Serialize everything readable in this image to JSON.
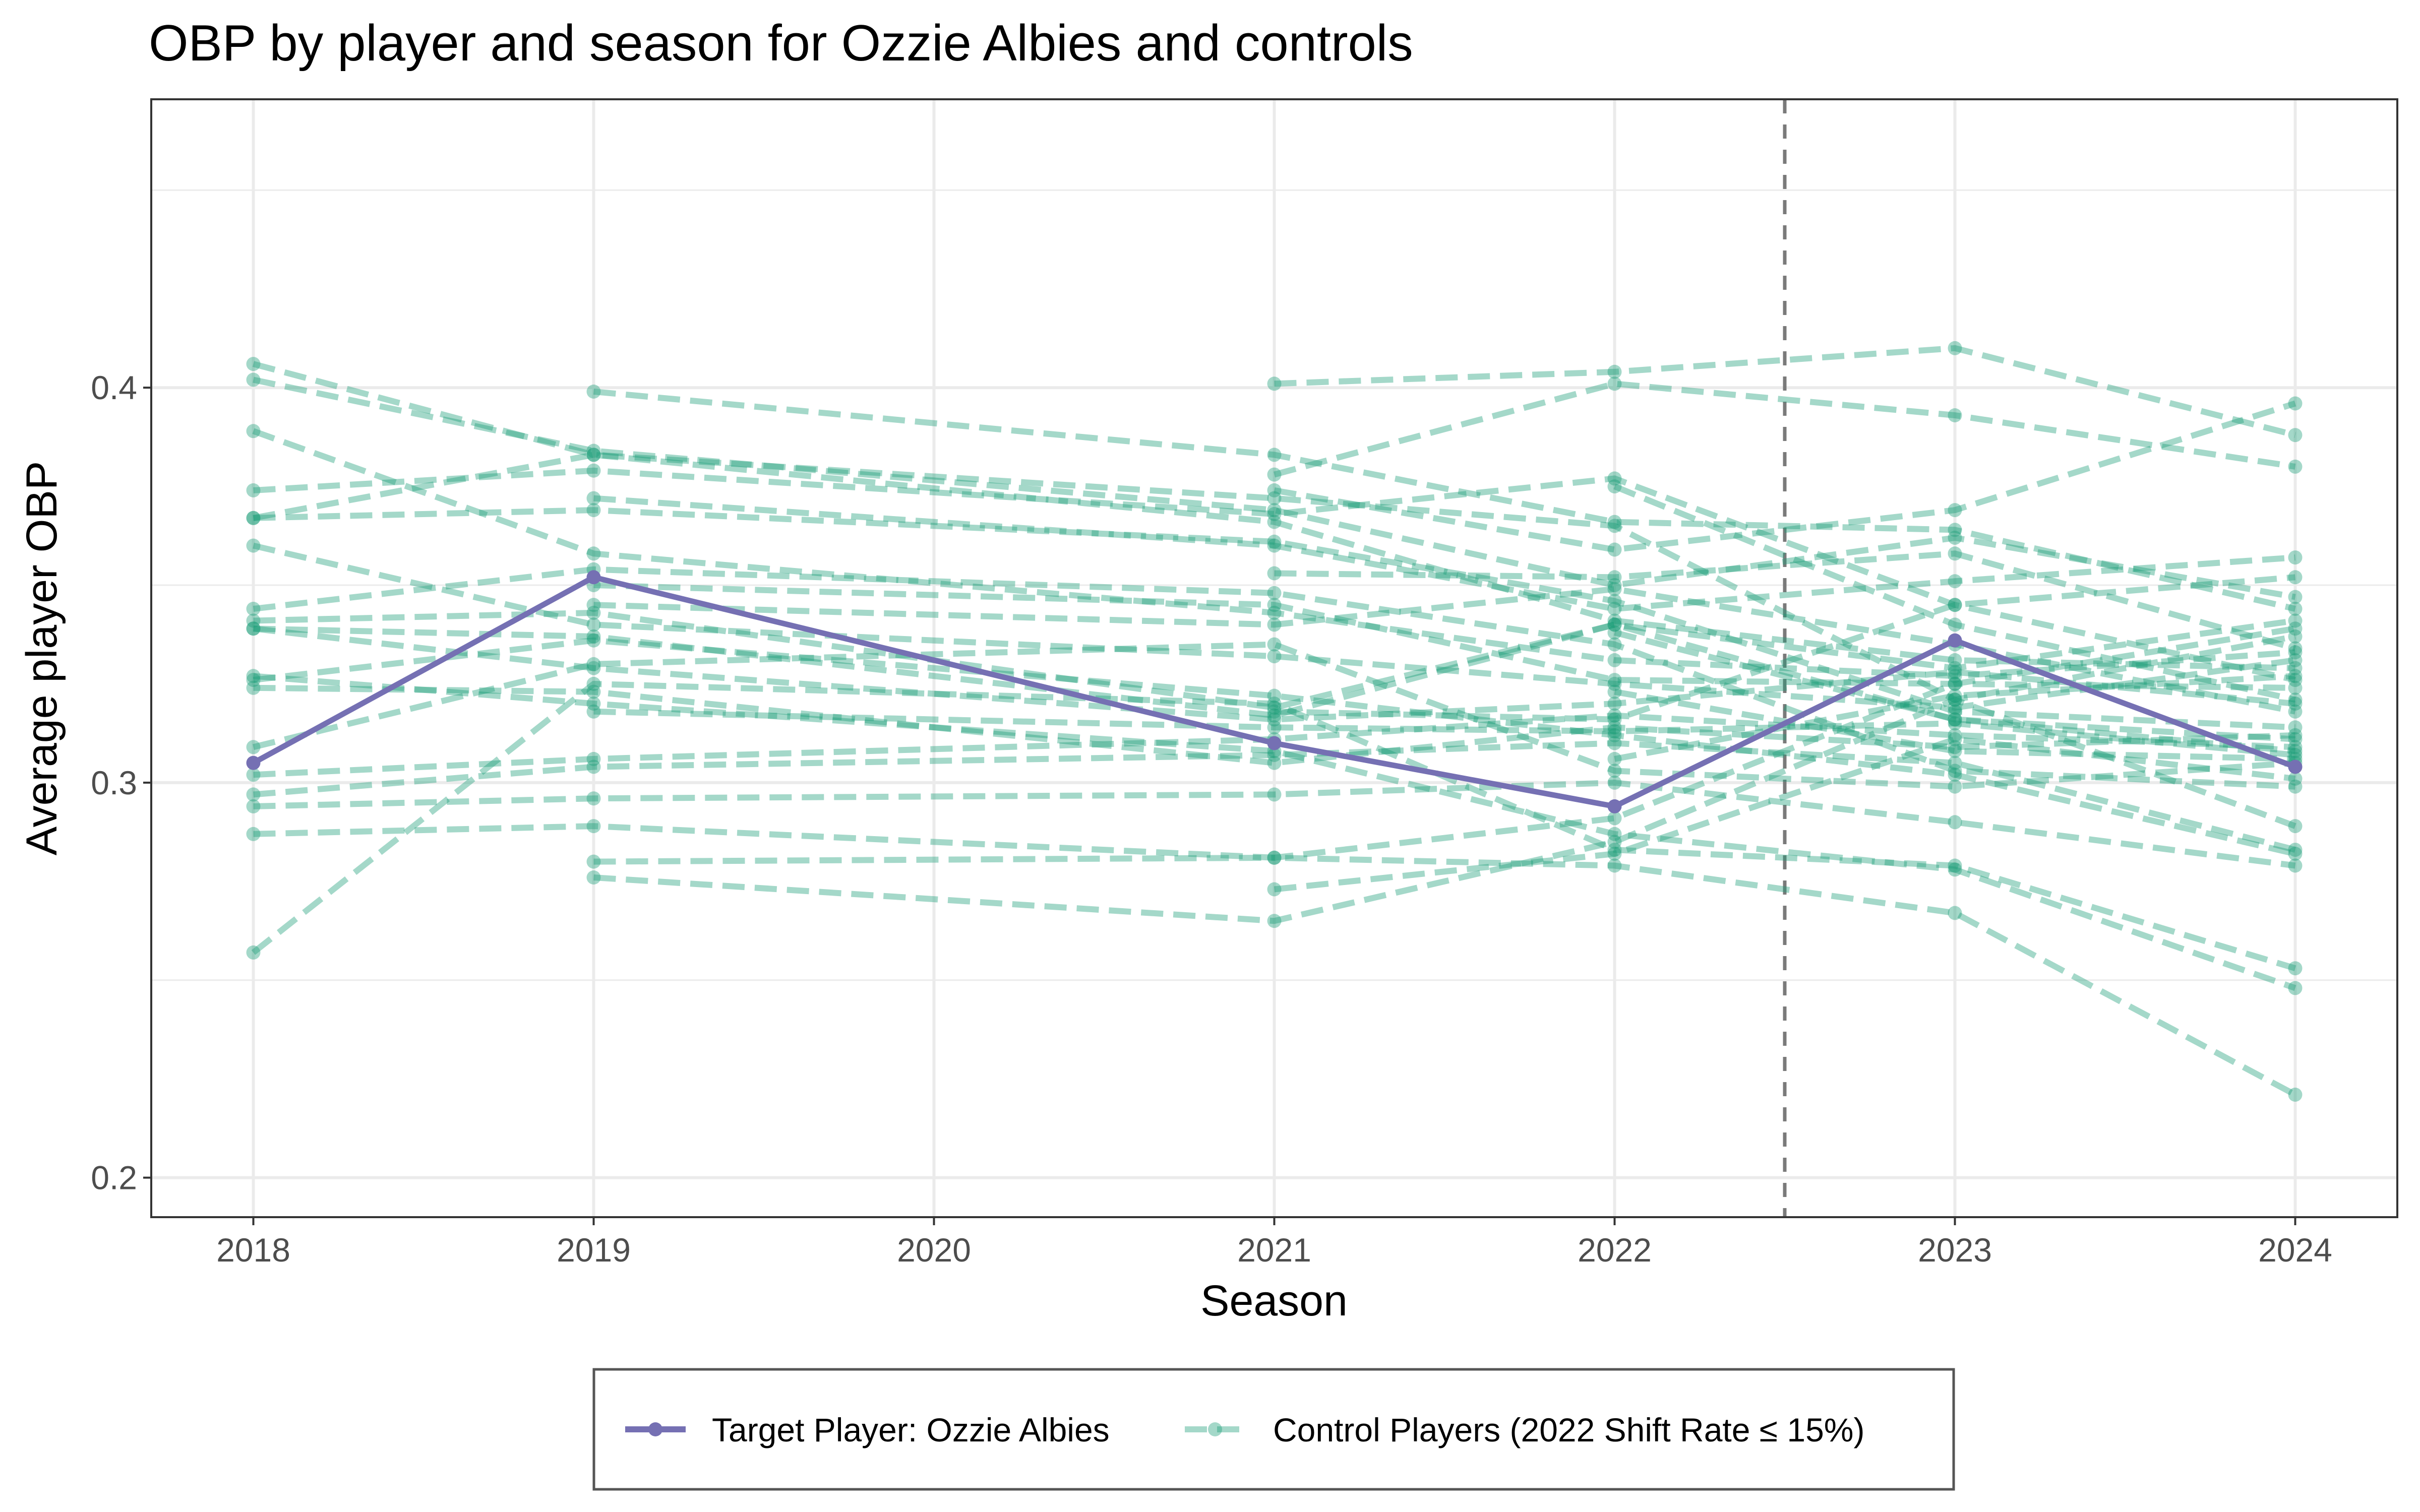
{
  "chart_data": {
    "type": "line",
    "title": "OBP by player and season for Ozzie Albies and controls",
    "xlabel": "Season",
    "ylabel": "Average player OBP",
    "x": [
      2018,
      2019,
      2020,
      2021,
      2022,
      2023,
      2024
    ],
    "xlim": [
      2017.7,
      2024.3
    ],
    "ylim": [
      0.19,
      0.473
    ],
    "y_ticks": [
      "0.2",
      "0.3",
      "0.4"
    ],
    "y_tick_values": [
      0.2,
      0.3,
      0.4
    ],
    "x_tick_labels": [
      "2018",
      "2019",
      "2020",
      "2021",
      "2022",
      "2023",
      "2024"
    ],
    "grid": true,
    "reference_line": {
      "x": 2022.5,
      "style": "dashed",
      "color": "#7a7a7a"
    },
    "legend": {
      "position": "bottom",
      "entries": [
        {
          "label": "Target Player: Ozzie Albies",
          "color": "#7570b3",
          "style": "solid"
        },
        {
          "label": "Control Players (2022 Shift Rate ≤ 15%)",
          "color": "#1b9e77",
          "style": "dashed"
        }
      ]
    },
    "series": [
      {
        "name": "Target Player: Ozzie Albies",
        "group": "target",
        "color": "#7570b3",
        "points": [
          [
            2018,
            0.305
          ],
          [
            2019,
            0.352
          ],
          [
            2021,
            0.31
          ],
          [
            2022,
            0.294
          ],
          [
            2023,
            0.336
          ],
          [
            2024,
            0.304
          ]
        ]
      },
      {
        "group": "control",
        "color": "#1b9e77",
        "points": [
          [
            2018,
            0.406
          ],
          [
            2019,
            0.383
          ],
          [
            2021,
            0.366
          ],
          [
            2022,
            0.341
          ],
          [
            2023,
            0.331
          ],
          [
            2024,
            0.329
          ]
        ]
      },
      {
        "group": "control",
        "color": "#1b9e77",
        "points": [
          [
            2018,
            0.402
          ],
          [
            2019,
            0.384
          ],
          [
            2021,
            0.369
          ],
          [
            2022,
            0.35
          ],
          [
            2023,
            0.362
          ],
          [
            2024,
            0.347
          ]
        ]
      },
      {
        "group": "control",
        "color": "#1b9e77",
        "points": [
          [
            2018,
            0.389
          ],
          [
            2019,
            0.358
          ],
          [
            2021,
            0.343
          ],
          [
            2022,
            0.331
          ],
          [
            2023,
            0.327
          ],
          [
            2024,
            0.333
          ]
        ]
      },
      {
        "group": "control",
        "color": "#1b9e77",
        "points": [
          [
            2018,
            0.374
          ],
          [
            2019,
            0.379
          ],
          [
            2021,
            0.368
          ],
          [
            2022,
            0.377
          ],
          [
            2023,
            0.345
          ],
          [
            2024,
            0.326
          ]
        ]
      },
      {
        "group": "control",
        "color": "#1b9e77",
        "points": [
          [
            2018,
            0.367
          ],
          [
            2019,
            0.369
          ],
          [
            2021,
            0.361
          ],
          [
            2022,
            0.346
          ],
          [
            2023,
            0.318
          ],
          [
            2024,
            0.314
          ]
        ]
      },
      {
        "group": "control",
        "color": "#1b9e77",
        "points": [
          [
            2018,
            0.367
          ],
          [
            2019,
            0.383
          ],
          [
            2021,
            0.372
          ],
          [
            2022,
            0.365
          ],
          [
            2023,
            0.321
          ],
          [
            2024,
            0.337
          ]
        ]
      },
      {
        "group": "control",
        "color": "#1b9e77",
        "points": [
          [
            2018,
            0.36
          ],
          [
            2019,
            0.34
          ],
          [
            2021,
            0.332
          ],
          [
            2022,
            0.325
          ],
          [
            2023,
            0.319
          ],
          [
            2024,
            0.331
          ]
        ]
      },
      {
        "group": "control",
        "color": "#1b9e77",
        "points": [
          [
            2018,
            0.344
          ],
          [
            2019,
            0.354
          ],
          [
            2021,
            0.348
          ],
          [
            2022,
            0.335
          ],
          [
            2023,
            0.303
          ],
          [
            2024,
            0.299
          ]
        ]
      },
      {
        "group": "control",
        "color": "#1b9e77",
        "points": [
          [
            2018,
            0.341
          ],
          [
            2019,
            0.343
          ],
          [
            2021,
            0.319
          ],
          [
            2022,
            0.34
          ],
          [
            2023,
            0.316
          ],
          [
            2024,
            0.308
          ]
        ]
      },
      {
        "group": "control",
        "color": "#1b9e77",
        "points": [
          [
            2018,
            0.339
          ],
          [
            2019,
            0.329
          ],
          [
            2021,
            0.316
          ],
          [
            2022,
            0.32
          ],
          [
            2023,
            0.328
          ],
          [
            2024,
            0.32
          ]
        ]
      },
      {
        "group": "control",
        "color": "#1b9e77",
        "points": [
          [
            2018,
            0.327
          ],
          [
            2019,
            0.32
          ],
          [
            2021,
            0.308
          ],
          [
            2022,
            0.287
          ],
          [
            2023,
            0.278
          ],
          [
            2024,
            0.248
          ]
        ]
      },
      {
        "group": "control",
        "color": "#1b9e77",
        "points": [
          [
            2018,
            0.326
          ],
          [
            2019,
            0.336
          ],
          [
            2021,
            0.322
          ],
          [
            2022,
            0.312
          ],
          [
            2023,
            0.302
          ],
          [
            2024,
            0.282
          ]
        ]
      },
      {
        "group": "control",
        "color": "#1b9e77",
        "points": [
          [
            2018,
            0.324
          ],
          [
            2019,
            0.323
          ],
          [
            2021,
            0.305
          ],
          [
            2022,
            0.314
          ],
          [
            2023,
            0.309
          ],
          [
            2024,
            0.312
          ]
        ]
      },
      {
        "group": "control",
        "color": "#1b9e77",
        "points": [
          [
            2018,
            0.309
          ],
          [
            2019,
            0.33
          ],
          [
            2021,
            0.335
          ],
          [
            2022,
            0.303
          ],
          [
            2023,
            0.299
          ],
          [
            2024,
            0.305
          ]
        ]
      },
      {
        "group": "control",
        "color": "#1b9e77",
        "points": [
          [
            2018,
            0.302
          ],
          [
            2019,
            0.306
          ],
          [
            2021,
            0.311
          ],
          [
            2022,
            0.317
          ],
          [
            2023,
            0.312
          ],
          [
            2024,
            0.309
          ]
        ]
      },
      {
        "group": "control",
        "color": "#1b9e77",
        "points": [
          [
            2018,
            0.297
          ],
          [
            2019,
            0.304
          ],
          [
            2021,
            0.307
          ],
          [
            2022,
            0.31
          ],
          [
            2023,
            0.305
          ],
          [
            2024,
            0.283
          ]
        ]
      },
      {
        "group": "control",
        "color": "#1b9e77",
        "points": [
          [
            2018,
            0.294
          ],
          [
            2019,
            0.296
          ],
          [
            2021,
            0.297
          ],
          [
            2022,
            0.3
          ],
          [
            2023,
            0.29
          ],
          [
            2024,
            0.279
          ]
        ]
      },
      {
        "group": "control",
        "color": "#1b9e77",
        "points": [
          [
            2018,
            0.287
          ],
          [
            2019,
            0.289
          ],
          [
            2021,
            0.281
          ],
          [
            2022,
            0.279
          ],
          [
            2023,
            0.267
          ],
          [
            2024,
            0.221
          ]
        ]
      },
      {
        "group": "control",
        "color": "#1b9e77",
        "points": [
          [
            2018,
            0.257
          ],
          [
            2019,
            0.325
          ],
          [
            2021,
            0.32
          ],
          [
            2022,
            0.283
          ],
          [
            2023,
            0.279
          ],
          [
            2024,
            0.253
          ]
        ]
      },
      {
        "group": "control",
        "color": "#1b9e77",
        "points": [
          [
            2018,
            0.339
          ],
          [
            2019,
            0.337
          ],
          [
            2021,
            0.317
          ],
          [
            2022,
            0.34
          ],
          [
            2023,
            0.329
          ],
          [
            2024,
            0.341
          ]
        ]
      },
      {
        "group": "control",
        "color": "#1b9e77",
        "points": [
          [
            2019,
            0.399
          ],
          [
            2021,
            0.383
          ],
          [
            2022,
            0.366
          ],
          [
            2023,
            0.364
          ],
          [
            2024,
            0.344
          ]
        ]
      },
      {
        "group": "control",
        "color": "#1b9e77",
        "points": [
          [
            2019,
            0.372
          ],
          [
            2021,
            0.36
          ],
          [
            2022,
            0.344
          ],
          [
            2023,
            0.351
          ],
          [
            2024,
            0.357
          ]
        ]
      },
      {
        "group": "control",
        "color": "#1b9e77",
        "points": [
          [
            2019,
            0.35
          ],
          [
            2021,
            0.345
          ],
          [
            2022,
            0.326
          ],
          [
            2023,
            0.325
          ],
          [
            2024,
            0.324
          ]
        ]
      },
      {
        "group": "control",
        "color": "#1b9e77",
        "points": [
          [
            2019,
            0.345
          ],
          [
            2021,
            0.34
          ],
          [
            2022,
            0.349
          ],
          [
            2023,
            0.335
          ],
          [
            2024,
            0.318
          ]
        ]
      },
      {
        "group": "control",
        "color": "#1b9e77",
        "points": [
          [
            2019,
            0.318
          ],
          [
            2021,
            0.314
          ],
          [
            2022,
            0.313
          ],
          [
            2023,
            0.315
          ],
          [
            2024,
            0.307
          ]
        ]
      },
      {
        "group": "control",
        "color": "#1b9e77",
        "points": [
          [
            2019,
            0.28
          ],
          [
            2021,
            0.281
          ],
          [
            2022,
            0.291
          ],
          [
            2023,
            0.325
          ],
          [
            2024,
            0.339
          ]
        ]
      },
      {
        "group": "control",
        "color": "#1b9e77",
        "points": [
          [
            2019,
            0.276
          ],
          [
            2021,
            0.265
          ],
          [
            2022,
            0.285
          ],
          [
            2023,
            0.321
          ],
          [
            2024,
            0.289
          ]
        ]
      },
      {
        "group": "control",
        "color": "#1b9e77",
        "points": [
          [
            2021,
            0.401
          ],
          [
            2022,
            0.404
          ],
          [
            2023,
            0.41
          ],
          [
            2024,
            0.388
          ]
        ]
      },
      {
        "group": "control",
        "color": "#1b9e77",
        "points": [
          [
            2021,
            0.378
          ],
          [
            2022,
            0.401
          ],
          [
            2023,
            0.393
          ],
          [
            2024,
            0.38
          ]
        ]
      },
      {
        "group": "control",
        "color": "#1b9e77",
        "points": [
          [
            2021,
            0.374
          ],
          [
            2022,
            0.359
          ],
          [
            2023,
            0.369
          ],
          [
            2024,
            0.396
          ]
        ]
      },
      {
        "group": "control",
        "color": "#1b9e77",
        "points": [
          [
            2021,
            0.353
          ],
          [
            2022,
            0.352
          ],
          [
            2023,
            0.358
          ],
          [
            2024,
            0.334
          ]
        ]
      },
      {
        "group": "control",
        "color": "#1b9e77",
        "points": [
          [
            2021,
            0.273
          ],
          [
            2022,
            0.282
          ],
          [
            2023,
            0.311
          ],
          [
            2024,
            0.301
          ]
        ]
      },
      {
        "group": "control",
        "color": "#1b9e77",
        "points": [
          [
            2021,
            0.318
          ],
          [
            2022,
            0.316
          ],
          [
            2023,
            0.345
          ],
          [
            2024,
            0.352
          ]
        ]
      },
      {
        "group": "control",
        "color": "#1b9e77",
        "points": [
          [
            2022,
            0.323
          ],
          [
            2023,
            0.308
          ],
          [
            2024,
            0.306
          ]
        ]
      },
      {
        "group": "control",
        "color": "#1b9e77",
        "points": [
          [
            2022,
            0.306
          ],
          [
            2023,
            0.322
          ],
          [
            2024,
            0.327
          ]
        ]
      },
      {
        "group": "control",
        "color": "#1b9e77",
        "points": [
          [
            2022,
            0.338
          ],
          [
            2023,
            0.316
          ],
          [
            2024,
            0.311
          ]
        ]
      },
      {
        "group": "control",
        "color": "#1b9e77",
        "points": [
          [
            2022,
            0.375
          ],
          [
            2023,
            0.34
          ],
          [
            2024,
            0.321
          ]
        ]
      }
    ]
  }
}
